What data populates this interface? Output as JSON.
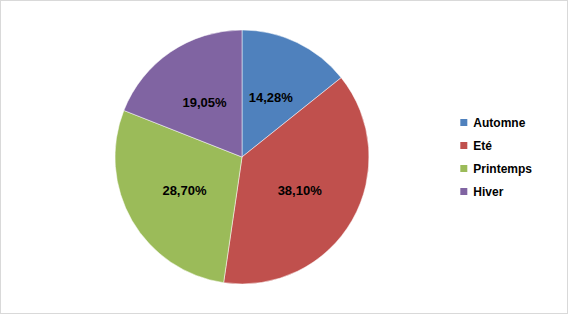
{
  "chart_data": {
    "type": "pie",
    "categories": [
      "Automne",
      "Eté",
      "Printemps",
      "Hiver"
    ],
    "values": [
      14.28,
      38.1,
      28.7,
      19.05
    ],
    "value_labels": [
      "14,28%",
      "38,10%",
      "28,70%",
      "19,05%"
    ],
    "colors": [
      "#4f81bd",
      "#c0504d",
      "#9bbb59",
      "#8064a2"
    ],
    "data_labels": true,
    "legend": "right"
  }
}
